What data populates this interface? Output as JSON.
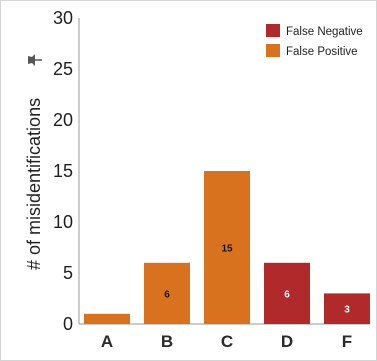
{
  "chart_data": {
    "type": "bar",
    "categories": [
      "A",
      "B",
      "C",
      "D",
      "F"
    ],
    "values": [
      1,
      6,
      15,
      6,
      3
    ],
    "data_labels": [
      "",
      "6",
      "15",
      "6",
      "3"
    ],
    "bar_series": [
      "False Positive",
      "False Positive",
      "False Positive",
      "False Negative",
      "False Negative"
    ],
    "series": [
      {
        "name": "False Negative",
        "color": "#b0292b",
        "label_color": "#ffffff"
      },
      {
        "name": "False Positive",
        "color": "#d9721f",
        "label_color": "#111111"
      }
    ],
    "ylabel": "# of misidentifications",
    "xlabel": "",
    "yticks": [
      0,
      5,
      10,
      15,
      20,
      25,
      30
    ],
    "ylim": [
      0,
      30
    ],
    "grid": false,
    "legend_position": "top-right",
    "axis_title_icon": "pin-icon"
  }
}
